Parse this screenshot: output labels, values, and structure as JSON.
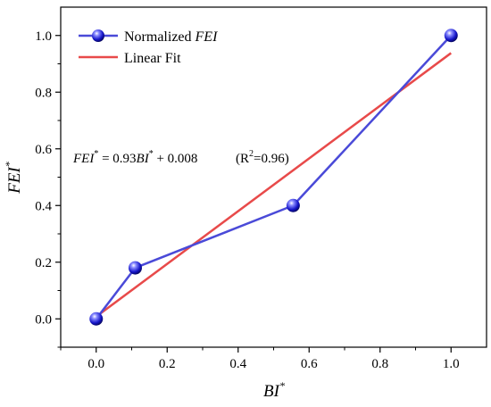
{
  "chart_data": {
    "type": "line",
    "xlabel": {
      "base": "BI",
      "sup": "*"
    },
    "ylabel": {
      "base": "FEI",
      "sup": "*"
    },
    "xlim": [
      -0.1,
      1.1
    ],
    "ylim": [
      -0.1,
      1.1
    ],
    "x_ticks": [
      "0.0",
      "0.2",
      "0.4",
      "0.6",
      "0.8",
      "1.0"
    ],
    "y_ticks": [
      "0.0",
      "0.2",
      "0.4",
      "0.6",
      "0.8",
      "1.0"
    ],
    "grid": false,
    "legend_position": "top-left",
    "series": [
      {
        "name_prefix": "Normalized ",
        "name_italic": "FEI",
        "color": "#4a4ad8",
        "marker": "sphere",
        "x": [
          0.0,
          0.11,
          0.555,
          1.0
        ],
        "y": [
          0.0,
          0.18,
          0.4,
          1.0
        ]
      },
      {
        "name": "Linear Fit",
        "color": "#e84a4a",
        "marker": "none",
        "x": [
          0.0,
          1.0
        ],
        "y": [
          0.008,
          0.938
        ]
      }
    ],
    "annotation": {
      "lhs": "FEI",
      "lhs_sup": "*",
      "mid": " = 0.93",
      "var": "BI",
      "var_sup": "*",
      "tail": " + 0.008",
      "r2_open": "(R",
      "r2_sup": "2",
      "r2_close": "=0.96)"
    }
  }
}
